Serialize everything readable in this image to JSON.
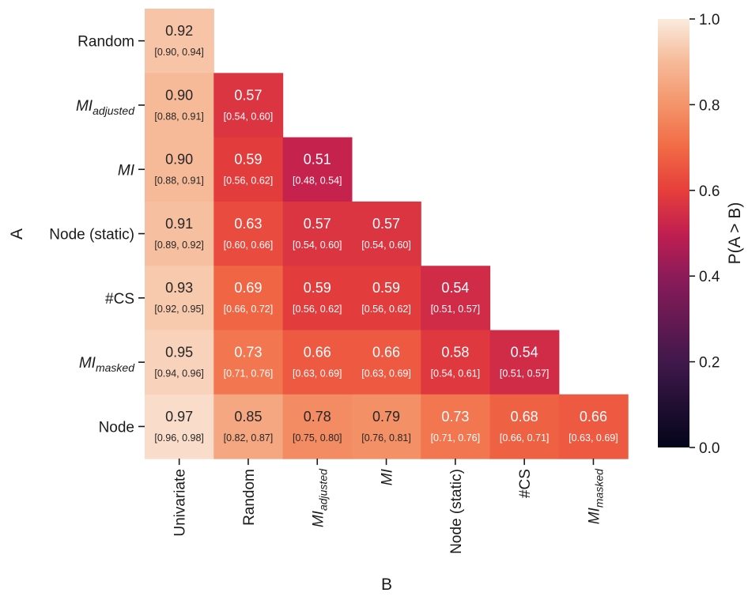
{
  "chart_data": {
    "type": "heatmap",
    "title": "",
    "xlabel": "B",
    "ylabel": "A",
    "x_categories": [
      {
        "base": "Univariate",
        "sub": ""
      },
      {
        "base": "Random",
        "sub": ""
      },
      {
        "base": "MI",
        "sub": "adjusted",
        "italic": true
      },
      {
        "base": "MI",
        "sub": "",
        "italic": true
      },
      {
        "base": "Node (static)",
        "sub": ""
      },
      {
        "base": "#CS",
        "sub": ""
      },
      {
        "base": "MI",
        "sub": "masked",
        "italic": true
      }
    ],
    "y_categories": [
      {
        "base": "Random",
        "sub": ""
      },
      {
        "base": "MI",
        "sub": "adjusted",
        "italic": true
      },
      {
        "base": "MI",
        "sub": "",
        "italic": true
      },
      {
        "base": "Node (static)",
        "sub": ""
      },
      {
        "base": "#CS",
        "sub": ""
      },
      {
        "base": "MI",
        "sub": "masked",
        "italic": true
      },
      {
        "base": "Node",
        "sub": ""
      }
    ],
    "values": [
      [
        0.92,
        null,
        null,
        null,
        null,
        null,
        null
      ],
      [
        0.9,
        0.57,
        null,
        null,
        null,
        null,
        null
      ],
      [
        0.9,
        0.59,
        0.51,
        null,
        null,
        null,
        null
      ],
      [
        0.91,
        0.63,
        0.57,
        0.57,
        null,
        null,
        null
      ],
      [
        0.93,
        0.69,
        0.59,
        0.59,
        0.54,
        null,
        null
      ],
      [
        0.95,
        0.73,
        0.66,
        0.66,
        0.58,
        0.54,
        null
      ],
      [
        0.97,
        0.85,
        0.78,
        0.79,
        0.73,
        0.68,
        0.66
      ]
    ],
    "value_labels": [
      [
        "0.92",
        null,
        null,
        null,
        null,
        null,
        null
      ],
      [
        "0.90",
        "0.57",
        null,
        null,
        null,
        null,
        null
      ],
      [
        "0.90",
        "0.59",
        "0.51",
        null,
        null,
        null,
        null
      ],
      [
        "0.91",
        "0.63",
        "0.57",
        "0.57",
        null,
        null,
        null
      ],
      [
        "0.93",
        "0.69",
        "0.59",
        "0.59",
        "0.54",
        null,
        null
      ],
      [
        "0.95",
        "0.73",
        "0.66",
        "0.66",
        "0.58",
        "0.54",
        null
      ],
      [
        "0.97",
        "0.85",
        "0.78",
        "0.79",
        "0.73",
        "0.68",
        "0.66"
      ]
    ],
    "ci_labels": [
      [
        "[0.90, 0.94]",
        null,
        null,
        null,
        null,
        null,
        null
      ],
      [
        "[0.88, 0.91]",
        "[0.54, 0.60]",
        null,
        null,
        null,
        null,
        null
      ],
      [
        "[0.88, 0.91]",
        "[0.56, 0.62]",
        "[0.48, 0.54]",
        null,
        null,
        null,
        null
      ],
      [
        "[0.89, 0.92]",
        "[0.60, 0.66]",
        "[0.54, 0.60]",
        "[0.54, 0.60]",
        null,
        null,
        null
      ],
      [
        "[0.92, 0.95]",
        "[0.66, 0.72]",
        "[0.56, 0.62]",
        "[0.56, 0.62]",
        "[0.51, 0.57]",
        null,
        null
      ],
      [
        "[0.94, 0.96]",
        "[0.71, 0.76]",
        "[0.63, 0.69]",
        "[0.63, 0.69]",
        "[0.54, 0.61]",
        "[0.51, 0.57]",
        null
      ],
      [
        "[0.96, 0.98]",
        "[0.82, 0.87]",
        "[0.75, 0.80]",
        "[0.76, 0.81]",
        "[0.71, 0.76]",
        "[0.66, 0.71]",
        "[0.63, 0.69]"
      ]
    ],
    "colorbar": {
      "label": "P(A > B)",
      "range": [
        0.0,
        1.0
      ],
      "ticks": [
        "0.0",
        "0.2",
        "0.4",
        "0.6",
        "0.8",
        "1.0"
      ],
      "colormap": "rocket"
    },
    "grid": false,
    "legend": "colorbar-right"
  }
}
